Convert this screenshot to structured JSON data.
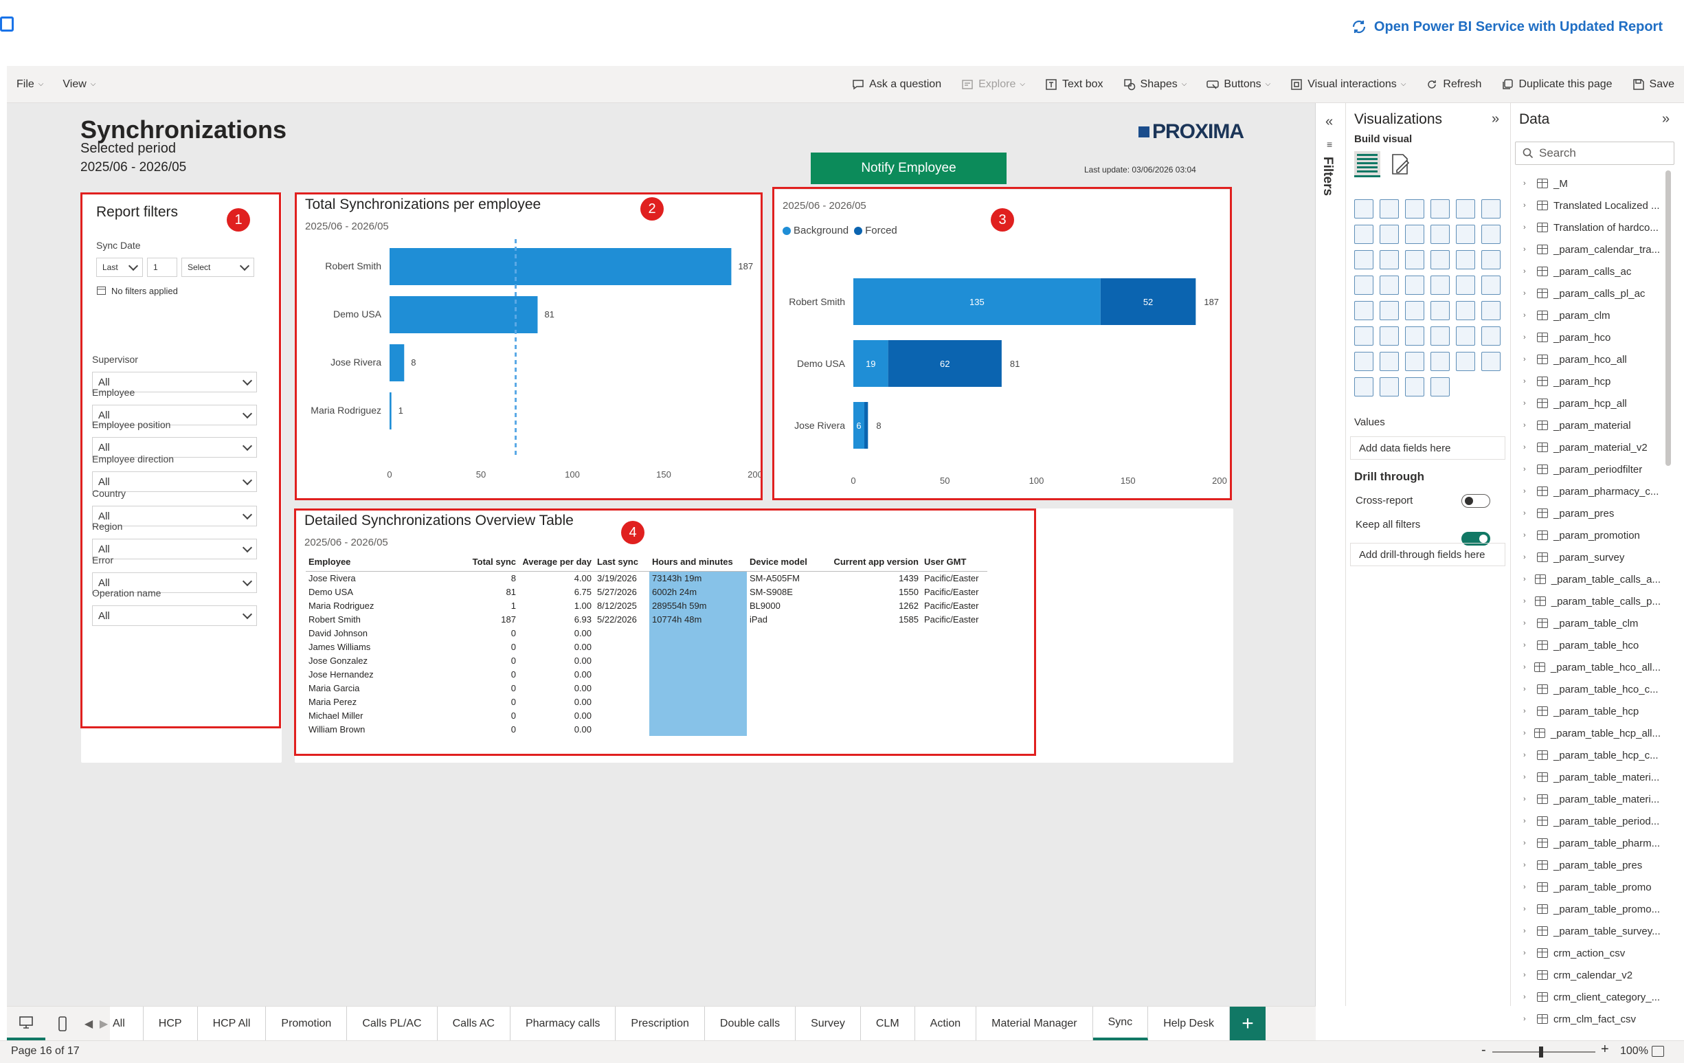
{
  "top": {
    "open_link": "Open Power BI Service with Updated Report"
  },
  "menubar": {
    "file": "File",
    "view": "View",
    "ask": "Ask a question",
    "explore": "Explore",
    "textbox": "Text box",
    "shapes": "Shapes",
    "buttons": "Buttons",
    "visual_interactions": "Visual interactions",
    "refresh": "Refresh",
    "duplicate": "Duplicate this page",
    "save": "Save"
  },
  "report": {
    "title": "Synchronizations",
    "selected_period_label": "Selected period",
    "period": "2025/06 - 2026/05",
    "logo": "PROXIMA",
    "notify_button": "Notify Employee",
    "last_update": "Last update: 03/06/2026 03:04"
  },
  "filters_panel": {
    "title": "Report filters",
    "badge": "1",
    "sync_date_label": "Sync Date",
    "sync_last": "Last",
    "sync_num": "1",
    "sync_unit": "Select",
    "no_filters": "No filters applied",
    "fields": [
      {
        "label": "Supervisor",
        "value": "All"
      },
      {
        "label": "Employee",
        "value": "All"
      },
      {
        "label": "Employee position",
        "value": "All"
      },
      {
        "label": "Employee direction",
        "value": "All"
      },
      {
        "label": "Country",
        "value": "All"
      },
      {
        "label": "Region",
        "value": "All"
      },
      {
        "label": "Error",
        "value": "All"
      },
      {
        "label": "Operation name",
        "value": "All"
      }
    ]
  },
  "chart_data": [
    {
      "type": "bar",
      "orientation": "horizontal",
      "title": "Total Synchronizations per employee",
      "subtitle": "2025/06 - 2026/05",
      "badge": "2",
      "categories": [
        "Robert Smith",
        "Demo USA",
        "Jose Rivera",
        "Maria Rodriguez"
      ],
      "values": [
        187,
        81,
        8,
        1
      ],
      "xlim": [
        0,
        200
      ],
      "xticks": [
        0,
        50,
        100,
        150,
        200
      ],
      "average_line": 69,
      "colors": {
        "bar": "#1f8ed6",
        "avg_line": "#5aa9e6"
      }
    },
    {
      "type": "bar",
      "orientation": "horizontal",
      "stacked": true,
      "subtitle": "2025/06 - 2026/05",
      "badge": "3",
      "categories": [
        "Robert Smith",
        "Demo USA",
        "Jose Rivera"
      ],
      "series": [
        {
          "name": "Background",
          "values": [
            135,
            19,
            6
          ],
          "color": "#1f8ed6"
        },
        {
          "name": "Forced",
          "values": [
            52,
            62,
            2
          ],
          "color": "#0b64b0"
        }
      ],
      "totals": [
        187,
        81,
        8
      ],
      "xlim": [
        0,
        200
      ],
      "xticks": [
        0,
        50,
        100,
        150,
        200
      ],
      "legend": "top-left"
    }
  ],
  "table": {
    "title": "Detailed Synchronizations Overview Table",
    "subtitle": "2025/06 - 2026/05",
    "badge": "4",
    "columns": [
      "Employee",
      "Total sync",
      "Average per day",
      "Last sync",
      "Hours and minutes",
      "Device model",
      "Current app version",
      "User GMT"
    ],
    "rows": [
      [
        "Jose Rivera",
        "8",
        "4.00",
        "3/19/2026",
        "73143h 19m",
        "SM-A505FM",
        "1439",
        "Pacific/Easter"
      ],
      [
        "Demo USA",
        "81",
        "6.75",
        "5/27/2026",
        "6002h 24m",
        "SM-S908E",
        "1550",
        "Pacific/Easter"
      ],
      [
        "Maria Rodriguez",
        "1",
        "1.00",
        "8/12/2025",
        "289554h 59m",
        "BL9000",
        "1262",
        "Pacific/Easter"
      ],
      [
        "Robert Smith",
        "187",
        "6.93",
        "5/22/2026",
        "10774h 48m",
        "iPad",
        "1585",
        "Pacific/Easter"
      ],
      [
        "David Johnson",
        "0",
        "0.00",
        "",
        "",
        "",
        "",
        ""
      ],
      [
        "James Williams",
        "0",
        "0.00",
        "",
        "",
        "",
        "",
        ""
      ],
      [
        "Jose Gonzalez",
        "0",
        "0.00",
        "",
        "",
        "",
        "",
        ""
      ],
      [
        "Jose Hernandez",
        "0",
        "0.00",
        "",
        "",
        "",
        "",
        ""
      ],
      [
        "Maria Garcia",
        "0",
        "0.00",
        "",
        "",
        "",
        "",
        ""
      ],
      [
        "Maria Perez",
        "0",
        "0.00",
        "",
        "",
        "",
        "",
        ""
      ],
      [
        "Michael Miller",
        "0",
        "0.00",
        "",
        "",
        "",
        "",
        ""
      ],
      [
        "William Brown",
        "0",
        "0.00",
        "",
        "",
        "",
        "",
        ""
      ]
    ]
  },
  "filters_strip": {
    "label": "Filters"
  },
  "visualizations": {
    "title": "Visualizations",
    "build_visual": "Build visual",
    "values_label": "Values",
    "add_data_fields": "Add data fields here",
    "drill_through": "Drill through",
    "cross_report": "Cross-report",
    "keep_all_filters": "Keep all filters",
    "add_drill_fields": "Add drill-through fields here"
  },
  "data_pane": {
    "title": "Data",
    "search_placeholder": "Search",
    "items": [
      "_M",
      "Translated Localized ...",
      "Translation of hardco...",
      "_param_calendar_tra...",
      "_param_calls_ac",
      "_param_calls_pl_ac",
      "_param_clm",
      "_param_hco",
      "_param_hco_all",
      "_param_hcp",
      "_param_hcp_all",
      "_param_material",
      "_param_material_v2",
      "_param_periodfilter",
      "_param_pharmacy_c...",
      "_param_pres",
      "_param_promotion",
      "_param_survey",
      "_param_table_calls_a...",
      "_param_table_calls_p...",
      "_param_table_clm",
      "_param_table_hco",
      "_param_table_hco_all...",
      "_param_table_hco_c...",
      "_param_table_hcp",
      "_param_table_hcp_all...",
      "_param_table_hcp_c...",
      "_param_table_materi...",
      "_param_table_materi...",
      "_param_table_period...",
      "_param_table_pharm...",
      "_param_table_pres",
      "_param_table_promo",
      "_param_table_promo...",
      "_param_table_survey...",
      "crm_action_csv",
      "crm_calendar_v2",
      "crm_client_category_...",
      "crm_clm_fact_csv"
    ]
  },
  "tabs": {
    "items": [
      "All",
      "HCP",
      "HCP All",
      "Promotion",
      "Calls PL/AC",
      "Calls AC",
      "Pharmacy calls",
      "Prescription",
      "Double calls",
      "Survey",
      "CLM",
      "Action",
      "Material Manager",
      "Sync",
      "Help Desk"
    ],
    "active": "Sync"
  },
  "status": {
    "page": "Page 16 of 17",
    "zoom": "100%"
  }
}
